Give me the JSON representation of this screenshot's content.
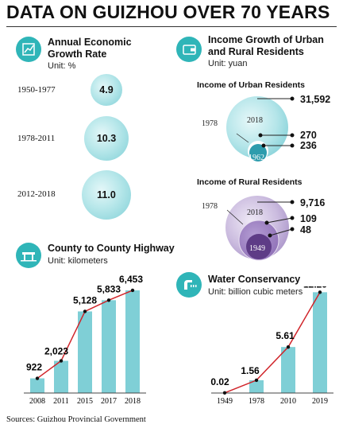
{
  "title": "DATA ON GUIZHOU OVER 70 YEARS",
  "footer": "Sources: Guizhou Provincial Government",
  "economic": {
    "title_line1": "Annual Economic",
    "title_line2": "Growth Rate",
    "unit": "Unit: %",
    "icon": "line-chart-icon"
  },
  "income": {
    "title_line1": "Income Growth of Urban",
    "title_line2": "and Rural Residents",
    "unit": "Unit: yuan",
    "icon": "wallet-icon",
    "urban_title": "Income of Urban Residents",
    "rural_title": "Income of Rural Residents"
  },
  "highway": {
    "title": "County to County Highway",
    "unit": "Unit: kilometers",
    "icon": "highway-icon"
  },
  "water": {
    "title": "Water Conservancy",
    "unit": "Unit: billion cubic meters",
    "icon": "water-tap-icon"
  },
  "colors": {
    "accent": "#2fb5b8",
    "bar": "#7fcfd6",
    "line": "#d0242a",
    "purple": "#7b5aa0"
  },
  "chart_data": [
    {
      "type": "bubble",
      "title": "Annual Economic Growth Rate",
      "categories": [
        "1950-1977",
        "1978-2011",
        "2012-2018"
      ],
      "values": [
        4.9,
        10.3,
        11.0
      ],
      "value_labels": [
        "4.9",
        "10.3",
        "11.0"
      ],
      "unit": "%"
    },
    {
      "type": "bubble",
      "title": "Income of Urban Residents",
      "unit": "yuan",
      "labels": [
        "1978",
        "2018",
        "1962"
      ],
      "values": [
        31592,
        270,
        236
      ],
      "value_labels": [
        "31,592",
        "270",
        "236"
      ]
    },
    {
      "type": "bubble",
      "title": "Income of Rural Residents",
      "unit": "yuan",
      "labels": [
        "1978",
        "2018",
        "1949"
      ],
      "values": [
        9716,
        109,
        48
      ],
      "value_labels": [
        "9,716",
        "109",
        "48"
      ]
    },
    {
      "type": "bar",
      "title": "County to County Highway",
      "unit": "kilometers",
      "categories": [
        "2008",
        "2011",
        "2015",
        "2017",
        "2018"
      ],
      "values": [
        922,
        2023,
        5128,
        5833,
        6453
      ],
      "value_labels": [
        "922",
        "2,023",
        "5,128",
        "5,833",
        "6,453"
      ],
      "ylim": [
        0,
        7000
      ]
    },
    {
      "type": "bar",
      "title": "Water Conservancy",
      "unit": "billion cubic meters",
      "categories": [
        "1949",
        "1978",
        "2010",
        "2019"
      ],
      "values": [
        0.02,
        1.56,
        5.61,
        12.29
      ],
      "value_labels": [
        "0.02",
        "1.56",
        "5.61",
        "12.29"
      ],
      "ylim": [
        0,
        13
      ]
    }
  ]
}
